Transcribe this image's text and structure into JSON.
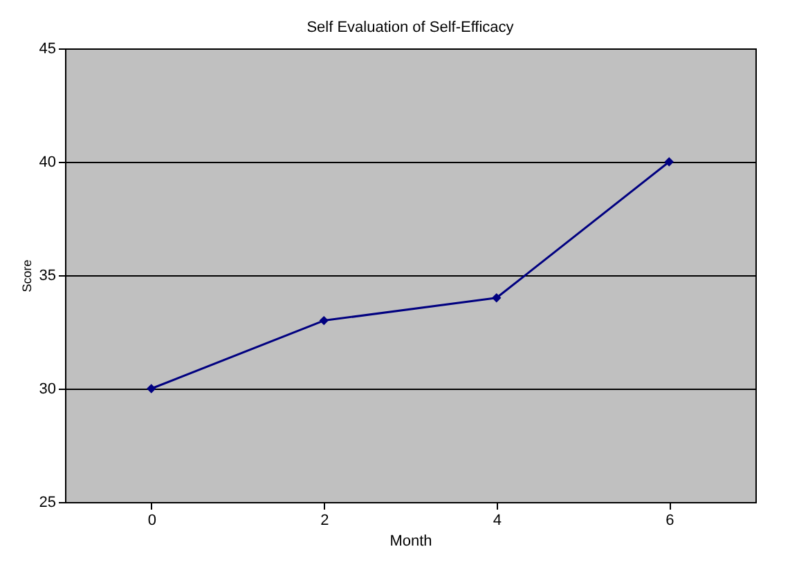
{
  "chart_data": {
    "type": "line",
    "title": "Self Evaluation of Self-Efficacy",
    "xlabel": "Month",
    "ylabel": "Score",
    "categories": [
      "0",
      "2",
      "4",
      "6"
    ],
    "series": [
      {
        "color": "#000080",
        "values": [
          30,
          33,
          34,
          40
        ]
      }
    ],
    "ylim": [
      25,
      45
    ],
    "yticks": [
      25,
      30,
      35,
      40,
      45
    ],
    "grid": "y",
    "marker": "diamond",
    "line_style": "solid"
  }
}
